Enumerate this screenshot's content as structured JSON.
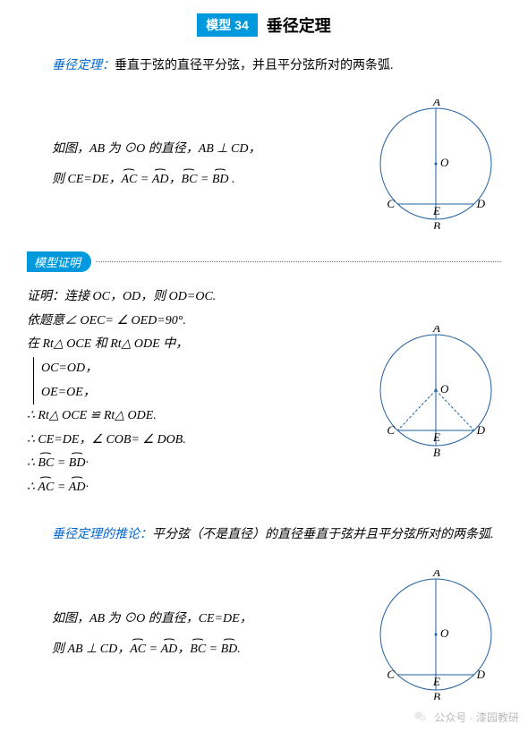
{
  "header": {
    "badge": "模型 34",
    "title": "垂径定理"
  },
  "theorem": {
    "name": "垂径定理：",
    "content": "垂直于弦的直径平分弦，并且平分弦所对的两条弧."
  },
  "block1": {
    "line1": "如图，AB 为 ⊙O 的直径，AB ⊥ CD，",
    "line2_prefix": "则 CE=DE，",
    "arc_AC": "AC",
    "arc_AD": "AD",
    "arc_BC": "BC",
    "arc_BD": "BD",
    "equals": " = ",
    "comma": "，",
    "period": " ."
  },
  "diagram_common": {
    "labels": {
      "A": "A",
      "B": "B",
      "C": "C",
      "D": "D",
      "E": "E",
      "O": "O"
    },
    "radius": 62,
    "colors": {
      "stroke": "#2060a0",
      "fill": "none",
      "label": "#000000"
    },
    "label_font": "italic 13px Times New Roman"
  },
  "proof_header": "模型证明",
  "proof": {
    "l1": "证明：连接 OC，OD，则 OD=OC.",
    "l2": "依题意∠ OEC= ∠ OED=90°.",
    "l3": "在 Rt△ OCE 和 Rt△ ODE 中，",
    "l4": "OC=OD，",
    "l5": "OE=OE，",
    "l6": "∴ Rt△ OCE ≌ Rt△ ODE.",
    "l7": "∴ CE=DE，∠ COB= ∠ DOB.",
    "l8_pre": "∴ ",
    "l8_arc1": "BC",
    "l8_arc2": "BD",
    "l9_pre": "∴ ",
    "l9_arc1": "AC",
    "l9_arc2": "AD",
    "arc_eq": " = ",
    "arc_end": "·"
  },
  "corollary": {
    "name": "垂径定理的推论：",
    "content": "平分弦（不是直径）的直径垂直于弦并且平分弦所对的两条弧."
  },
  "block3": {
    "line1": "如图，AB 为 ⊙O 的直径，CE=DE，",
    "line2_prefix": "则 AB ⊥ CD，",
    "arc_AC": "AC",
    "arc_AD": "AD",
    "arc_BC": "BC",
    "arc_BD": "BD",
    "equals": " = ",
    "comma": "，",
    "period": "."
  },
  "watermark": {
    "text": "公众号 · 漆园教研"
  }
}
